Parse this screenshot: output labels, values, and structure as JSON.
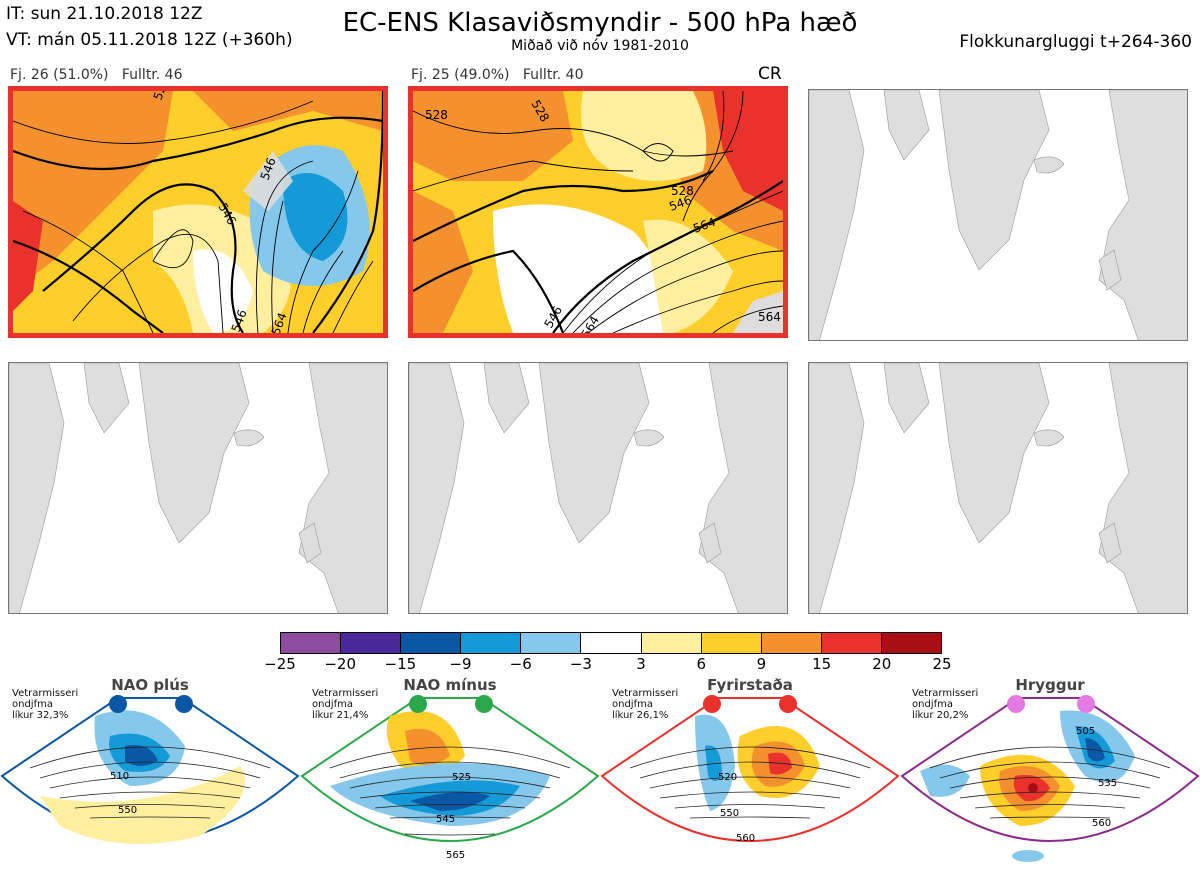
{
  "header": {
    "it": "IT: sun 21.10.2018 12Z",
    "vt": "VT: mán 05.11.2018 12Z  (+360h)",
    "title": "EC-ENS Klasaviðsmyndir - 500 hPa hæð",
    "subtitle": "Miðað við nóv 1981-2010",
    "window": "Flokkunargluggi t+264-360"
  },
  "panels": [
    {
      "fj": "Fj. 26 (51.0%)",
      "fulltr": "Fulltr. 46",
      "tag": "",
      "contours": [
        "528",
        "546",
        "546",
        "546",
        "564"
      ]
    },
    {
      "fj": "Fj. 25 (49.0%)",
      "fulltr": "Fulltr. 40",
      "tag": "CR",
      "contours": [
        "528",
        "528",
        "528",
        "546",
        "564",
        "546",
        "564",
        "564"
      ]
    }
  ],
  "colorbar": {
    "ticks": [
      "−25",
      "−20",
      "−15",
      "−9",
      "−6",
      "−3",
      "3",
      "6",
      "9",
      "15",
      "20",
      "25"
    ],
    "colors": [
      "#8e4ca0",
      "#4a2a9a",
      "#0a57a6",
      "#159ad8",
      "#86c8ec",
      "#ffffff",
      "#ffef9e",
      "#fecf2a",
      "#f5902e",
      "#e8322b",
      "#a80f14"
    ]
  },
  "regimes": [
    {
      "name": "NAO plús",
      "note": [
        "Vetrarmisseri",
        "ondjfma",
        "líkur 32,3%"
      ],
      "color": "#0a57a6",
      "labels": [
        "510",
        "550"
      ]
    },
    {
      "name": "NAO mínus",
      "note": [
        "Vetrarmisseri",
        "ondjfma",
        "líkur 21,4%"
      ],
      "color": "#2aa84a",
      "labels": [
        "525",
        "545",
        "565"
      ]
    },
    {
      "name": "Fyrirstaða",
      "note": [
        "Vetrarmisseri",
        "ondjfma",
        "líkur 26,1%"
      ],
      "color": "#e8322b",
      "labels": [
        "520",
        "550",
        "560"
      ]
    },
    {
      "name": "Hryggur",
      "note": [
        "Vetrarmisseri",
        "ondjfma",
        "líkur 20,2%"
      ],
      "color": "#e47ae4",
      "labels": [
        "505",
        "535",
        "560"
      ]
    }
  ]
}
